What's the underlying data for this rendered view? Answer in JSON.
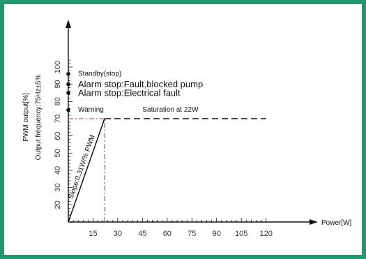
{
  "chart_data": {
    "type": "line",
    "title": "",
    "xlabel": "Power[W]",
    "ylabel": "PWM output[%]",
    "ylabel2": "Output frequency:75Hz±5%",
    "xlim": [
      0,
      125
    ],
    "ylim": [
      10,
      105
    ],
    "x_ticks": [
      15,
      30,
      45,
      60,
      75,
      90,
      105,
      120
    ],
    "y_ticks": [
      20,
      30,
      40,
      50,
      60,
      70,
      80,
      90,
      100
    ],
    "series": [
      {
        "style": "solid",
        "points": [
          [
            0,
            10
          ],
          [
            22,
            70
          ]
        ]
      },
      {
        "style": "dashed",
        "points": [
          [
            22,
            70
          ],
          [
            120,
            70
          ]
        ]
      }
    ],
    "reference_lines": [
      {
        "style": "dash-dot",
        "color": "#c0392b",
        "points": [
          [
            0,
            70
          ],
          [
            22,
            70
          ]
        ]
      },
      {
        "style": "dash-dot",
        "color": "#c0392b",
        "points": [
          [
            22,
            10
          ],
          [
            22,
            70
          ]
        ]
      }
    ],
    "markers": [
      {
        "y": 96,
        "label": "Standby(stop)",
        "size": "small"
      },
      {
        "y": 90,
        "label": "Alarm stop:Fault,blocked pump",
        "size": "large"
      },
      {
        "y": 85,
        "label": "Alarm stop:Electrical fault",
        "size": "large"
      },
      {
        "y": 75,
        "label": "Warning",
        "size": "small"
      }
    ],
    "annotations": [
      {
        "text": "Saturation at 22W",
        "x": 45,
        "y": 70
      },
      {
        "text": "Slope:0.31W/% PWM",
        "x": 11,
        "y": 40,
        "along_line": true
      }
    ],
    "grid": false,
    "legend": "none",
    "colors": {
      "border": "#1f9a6e",
      "axis": "#111111",
      "reference": "#c0392b"
    }
  }
}
